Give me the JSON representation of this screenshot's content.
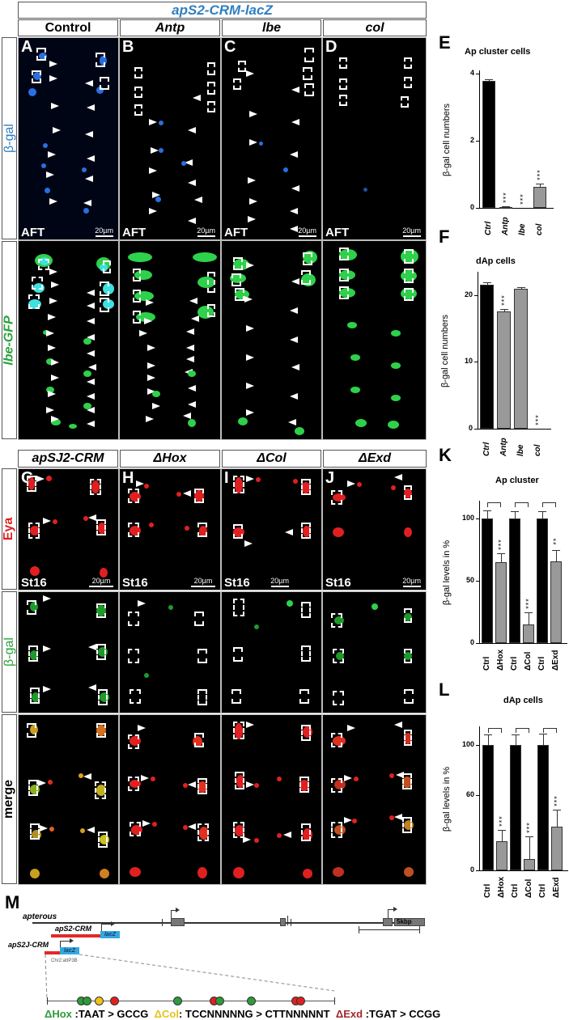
{
  "figure": {
    "top_title": "apS2-CRM-lacZ",
    "top_columns": [
      {
        "label": "Control",
        "italic": false
      },
      {
        "label": "Antp",
        "italic": true
      },
      {
        "label": "lbe",
        "italic": true
      },
      {
        "label": "col",
        "italic": true
      }
    ],
    "top_rows": [
      {
        "label": "β-gal",
        "color": "#2f7fc1"
      },
      {
        "label": "lbe-GFP",
        "color": "#2aa33a"
      }
    ],
    "top_panels": [
      {
        "letter": "A",
        "tag": "AFT",
        "scale": "20µm"
      },
      {
        "letter": "B",
        "tag": "AFT",
        "scale": "20µm"
      },
      {
        "letter": "C",
        "tag": "AFT",
        "scale": "20µm"
      },
      {
        "letter": "D",
        "tag": "AFT",
        "scale": "20µm"
      }
    ],
    "bottom_columns": [
      {
        "label": "apSJ2-CRM"
      },
      {
        "label": "ΔHox"
      },
      {
        "label": "ΔCol"
      },
      {
        "label": "ΔExd"
      }
    ],
    "bottom_rows": [
      {
        "label": "Eya",
        "color": "#e02020"
      },
      {
        "label": "β-gal",
        "color": "#2aa33a"
      },
      {
        "label": "merge",
        "color": "#000000"
      }
    ],
    "bottom_panels": [
      {
        "letter": "G",
        "tag": "St16",
        "scale": "20µm"
      },
      {
        "letter": "H",
        "tag": "St16",
        "scale": "20µm"
      },
      {
        "letter": "I",
        "tag": "St16",
        "scale": "20µm"
      },
      {
        "letter": "J",
        "tag": "St16",
        "scale": "20µm"
      }
    ],
    "diagram": {
      "letter": "M",
      "gene": "apterous",
      "construct1": "apS2-CRM",
      "construct2": "apS2J-CRM",
      "reporter": "lacZ",
      "site": "Chr2:attP3B",
      "scale": "5kbp",
      "mutations": [
        {
          "name": "ΔHox",
          "color": "#2e9a3a",
          "seq": " :TAAT > GCCG"
        },
        {
          "name": "ΔCol",
          "color": "#e6c21a",
          "seq": ": TCCNNNNNG  > CTTNNNNNT"
        },
        {
          "name": "ΔExd",
          "color": "#a0282a",
          "seq": " :TGAT > CCGG"
        }
      ],
      "sites": [
        {
          "x": 100,
          "color": "#2e9a3a"
        },
        {
          "x": 107,
          "color": "#2e9a3a"
        },
        {
          "x": 122,
          "color": "#f2c21a"
        },
        {
          "x": 141,
          "color": "#e02020"
        },
        {
          "x": 219,
          "color": "#2e9a3a"
        },
        {
          "x": 264,
          "color": "#e02020"
        },
        {
          "x": 271,
          "color": "#2e9a3a"
        },
        {
          "x": 310,
          "color": "#2e9a3a"
        },
        {
          "x": 365,
          "color": "#e02020"
        },
        {
          "x": 371,
          "color": "#e02020"
        }
      ]
    }
  },
  "chart_data": [
    {
      "panel": "E",
      "type": "bar",
      "title": "Ap cluster cells",
      "ylabel": "β-gal cell numbers",
      "categories": [
        "Ctrl",
        "Antp",
        "lbe",
        "col"
      ],
      "values": [
        3.78,
        0.03,
        0.0,
        0.63
      ],
      "errors": [
        0.06,
        0.01,
        0.0,
        0.1
      ],
      "significance": [
        "",
        "***",
        "***",
        "***"
      ],
      "colors": [
        "#000000",
        "#999999",
        "#999999",
        "#999999"
      ],
      "ylim": [
        0,
        4
      ],
      "yticks": [
        0,
        2,
        4
      ]
    },
    {
      "panel": "F",
      "type": "bar",
      "title": "dAp cells",
      "ylabel": "β-gal cell numbers",
      "categories": [
        "Ctrl",
        "Antp",
        "lbe",
        "col"
      ],
      "values": [
        21.6,
        17.5,
        20.9,
        0
      ],
      "errors": [
        0.3,
        0.4,
        0.3,
        0
      ],
      "significance": [
        "",
        "***",
        "",
        "***"
      ],
      "colors": [
        "#000000",
        "#999999",
        "#999999",
        "#999999"
      ],
      "ylim": [
        0,
        23
      ],
      "yticks": [
        0,
        10,
        20
      ]
    },
    {
      "panel": "K",
      "type": "bar",
      "title": "Ap cluster",
      "ylabel": "β-gal levels in %",
      "categories": [
        "Ctrl",
        "ΔHox",
        "Ctrl",
        "ΔCol",
        "Ctrl",
        "ΔExd"
      ],
      "values": [
        100,
        65,
        100,
        15,
        100,
        66
      ],
      "errors": [
        7,
        7,
        6,
        10,
        6,
        9
      ],
      "significance": [
        "",
        "***",
        "",
        "***",
        "",
        "**"
      ],
      "colors": [
        "#000000",
        "#999999",
        "#000000",
        "#999999",
        "#000000",
        "#999999"
      ],
      "ylim": [
        0,
        112
      ],
      "yticks": [
        0,
        50,
        100
      ]
    },
    {
      "panel": "L",
      "type": "bar",
      "title": "dAp cells",
      "ylabel": "β-gal levels in %",
      "categories": [
        "Ctrl",
        "ΔHox",
        "Ctrl",
        "ΔCol",
        "Ctrl",
        "ΔExd"
      ],
      "values": [
        100,
        23,
        100,
        9,
        100,
        35
      ],
      "errors": [
        8,
        9,
        8,
        18,
        9,
        13
      ],
      "significance": [
        "",
        "***",
        "",
        "***",
        "",
        "***"
      ],
      "colors": [
        "#000000",
        "#999999",
        "#000000",
        "#999999",
        "#000000",
        "#999999"
      ],
      "ylim": [
        0,
        112
      ],
      "yticks": [
        0,
        60,
        100
      ]
    }
  ]
}
